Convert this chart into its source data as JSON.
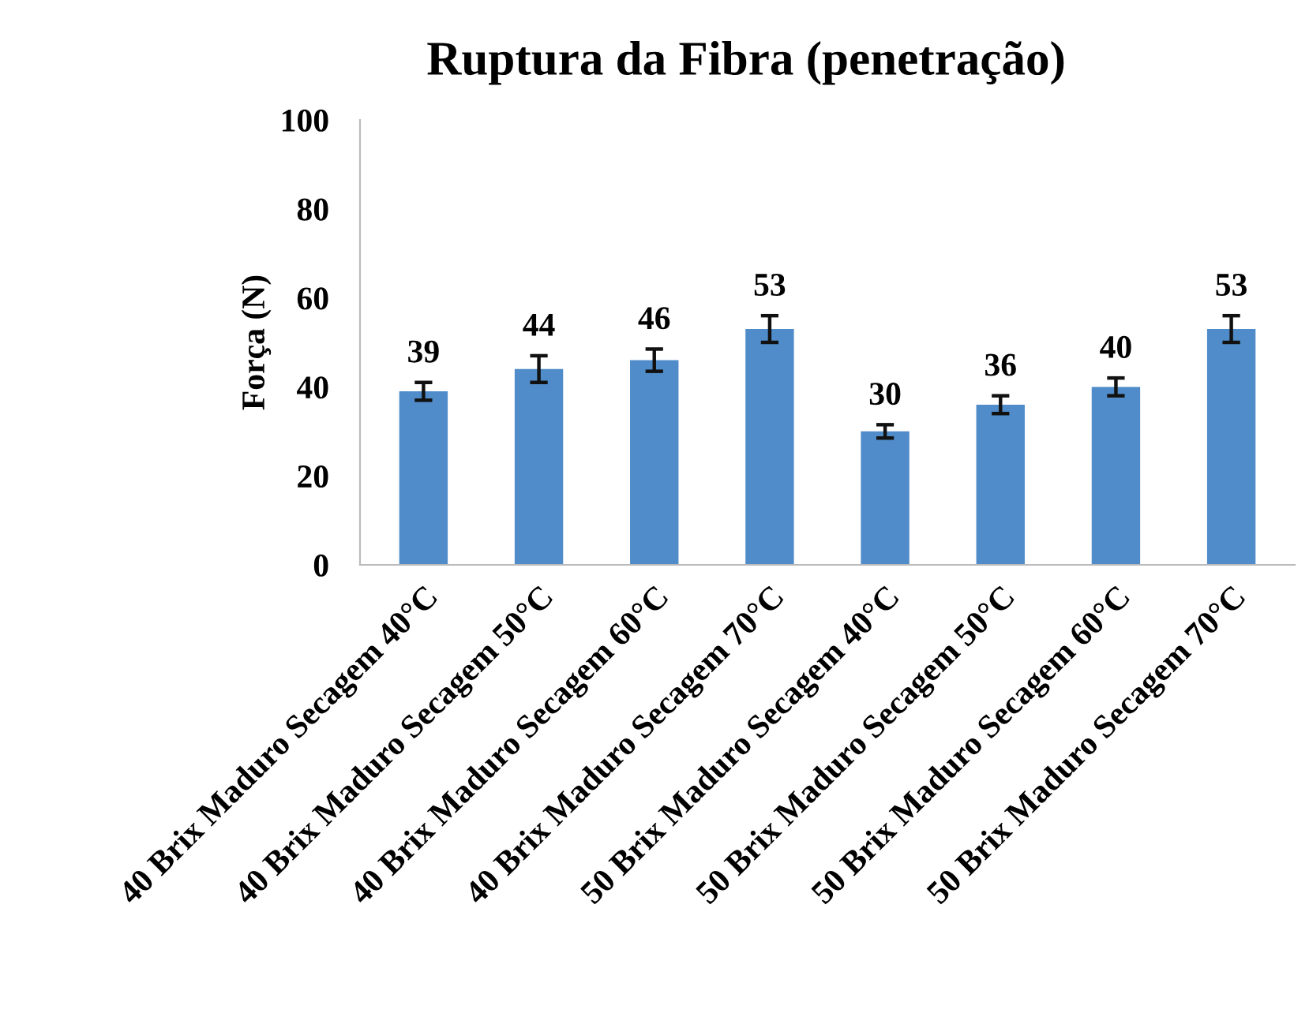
{
  "chart_data": {
    "type": "bar",
    "title": "Ruptura da Fibra (penetração)",
    "ylabel": "Força (N)",
    "categories": [
      "40 Brix Maduro Secagem 40°C",
      "40 Brix Maduro Secagem 50°C",
      "40 Brix Maduro Secagem 60°C",
      "40 Brix Maduro Secagem 70°C",
      "50 Brix Maduro Secagem 40°C",
      "50 Brix Maduro Secagem 50°C",
      "50 Brix Maduro Secagem 60°C",
      "50 Brix Maduro Secagem 70°C"
    ],
    "values": [
      39,
      44,
      46,
      53,
      30,
      36,
      40,
      53
    ],
    "errors": [
      2,
      3,
      2.5,
      3,
      1.5,
      2,
      2,
      3
    ],
    "color": "#4f8cc9",
    "data_labels": true,
    "ylim": [
      0,
      100
    ],
    "yticks": [
      0,
      20,
      40,
      60,
      80,
      100
    ],
    "grid": false,
    "legend": false
  }
}
